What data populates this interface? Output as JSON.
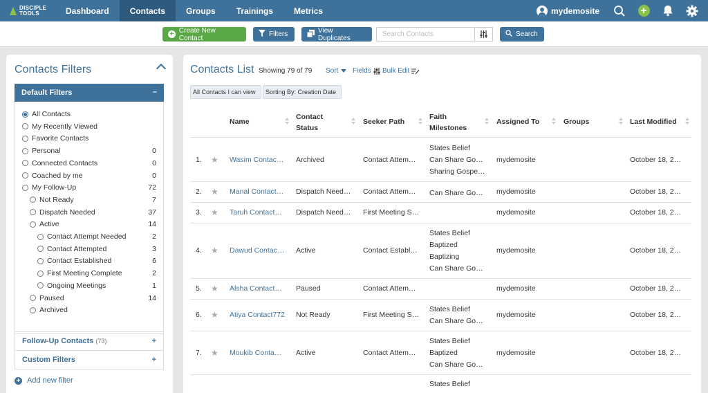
{
  "brand": {
    "line1": "DISCIPLE",
    "line2": "TOOLS"
  },
  "nav": {
    "items": [
      {
        "label": "Dashboard",
        "active": false
      },
      {
        "label": "Contacts",
        "active": true
      },
      {
        "label": "Groups",
        "active": false
      },
      {
        "label": "Trainings",
        "active": false
      },
      {
        "label": "Metrics",
        "active": false
      }
    ],
    "username": "mydemosite",
    "icons": [
      "user-avatar-icon",
      "search-icon",
      "plus-icon",
      "bell-icon",
      "gear-icon"
    ]
  },
  "toolbar": {
    "create_label": "Create New Contact",
    "filters_label": "Filters",
    "duplicates_label": "View Duplicates",
    "search_placeholder": "Search Contacts",
    "search_button": "Search"
  },
  "filters_panel": {
    "title": "Contacts Filters",
    "default_title": "Default Filters",
    "default_toggle": "–",
    "items": [
      {
        "label": "All Contacts",
        "count": "",
        "level": 0,
        "selected": true
      },
      {
        "label": "My Recently Viewed",
        "count": "",
        "level": 0,
        "selected": false
      },
      {
        "label": "Favorite Contacts",
        "count": "",
        "level": 0,
        "selected": false
      },
      {
        "label": "Personal",
        "count": "0",
        "level": 0,
        "selected": false
      },
      {
        "label": "Connected Contacts",
        "count": "0",
        "level": 0,
        "selected": false
      },
      {
        "label": "Coached by me",
        "count": "0",
        "level": 0,
        "selected": false
      },
      {
        "label": "My Follow-Up",
        "count": "72",
        "level": 0,
        "selected": false
      },
      {
        "label": "Not Ready",
        "count": "7",
        "level": 1,
        "selected": false
      },
      {
        "label": "Dispatch Needed",
        "count": "37",
        "level": 1,
        "selected": false
      },
      {
        "label": "Active",
        "count": "14",
        "level": 1,
        "selected": false
      },
      {
        "label": "Contact Attempt Needed",
        "count": "2",
        "level": 2,
        "selected": false
      },
      {
        "label": "Contact Attempted",
        "count": "3",
        "level": 2,
        "selected": false
      },
      {
        "label": "Contact Established",
        "count": "6",
        "level": 2,
        "selected": false
      },
      {
        "label": "First Meeting Complete",
        "count": "2",
        "level": 2,
        "selected": false
      },
      {
        "label": "Ongoing Meetings",
        "count": "1",
        "level": 2,
        "selected": false
      },
      {
        "label": "Paused",
        "count": "14",
        "level": 1,
        "selected": false
      },
      {
        "label": "Archived",
        "count": "",
        "level": 1,
        "selected": false
      }
    ],
    "followup_title": "Follow-Up Contacts",
    "followup_count": "(73)",
    "custom_title": "Custom Filters",
    "section_toggle": "+",
    "add_filter": "Add new filter"
  },
  "list": {
    "title": "Contacts List",
    "showing": "Showing 79 of 79",
    "sort_label": "Sort",
    "fields_label": "Fields",
    "bulk_edit_label": "Bulk Edit",
    "chips": [
      "All Contacts I can view",
      "Sorting By: Creation Date"
    ],
    "columns": [
      {
        "label1": "Name",
        "label2": ""
      },
      {
        "label1": "Contact",
        "label2": "Status"
      },
      {
        "label1": "Seeker Path",
        "label2": ""
      },
      {
        "label1": "Faith",
        "label2": "Milestones"
      },
      {
        "label1": "Assigned To",
        "label2": ""
      },
      {
        "label1": "Groups",
        "label2": ""
      },
      {
        "label1": "Last Modified",
        "label2": ""
      }
    ],
    "rows": [
      {
        "num": "1.",
        "name": "Wasim Contac…",
        "status": "Archived",
        "seeker": "Contact Attem…",
        "milestones": [
          "States Belief",
          "Can Share Go…",
          "Sharing Gospe…"
        ],
        "assigned": "mydemosite",
        "modified": "October 18, 2…"
      },
      {
        "num": "2.",
        "name": "Manal Contact…",
        "status": "Dispatch Need…",
        "seeker": "Contact Attem…",
        "milestones": [
          "Can Share Go…"
        ],
        "assigned": "mydemosite",
        "modified": "October 18, 2…"
      },
      {
        "num": "3.",
        "name": "Taruh Contact…",
        "status": "Dispatch Need…",
        "seeker": "First Meeting S…",
        "milestones": [],
        "assigned": "mydemosite",
        "modified": "October 18, 2…"
      },
      {
        "num": "4.",
        "name": "Dawud Contac…",
        "status": "Active",
        "seeker": "Contact Establ…",
        "milestones": [
          "States Belief",
          "Baptized",
          "Baptizing",
          "Can Share Go…"
        ],
        "assigned": "mydemosite",
        "modified": "October 18, 2…"
      },
      {
        "num": "5.",
        "name": "Alsha Contact…",
        "status": "Paused",
        "seeker": "Contact Attem…",
        "milestones": [],
        "assigned": "mydemosite",
        "modified": "October 18, 2…"
      },
      {
        "num": "6.",
        "name": "Atiya Contact772",
        "status": "Not Ready",
        "seeker": "First Meeting S…",
        "milestones": [
          "States Belief",
          "Can Share Go…"
        ],
        "assigned": "mydemosite",
        "modified": "October 18, 2…"
      },
      {
        "num": "7.",
        "name": "Moukib Conta…",
        "status": "Active",
        "seeker": "Contact Attem…",
        "milestones": [
          "States Belief",
          "Baptized",
          "Can Share Go…"
        ],
        "assigned": "mydemosite",
        "modified": "October 18, 2…"
      },
      {
        "num": "",
        "name": "",
        "status": "",
        "seeker": "",
        "milestones": [
          "States Belief"
        ],
        "assigned": "",
        "modified": ""
      }
    ]
  }
}
